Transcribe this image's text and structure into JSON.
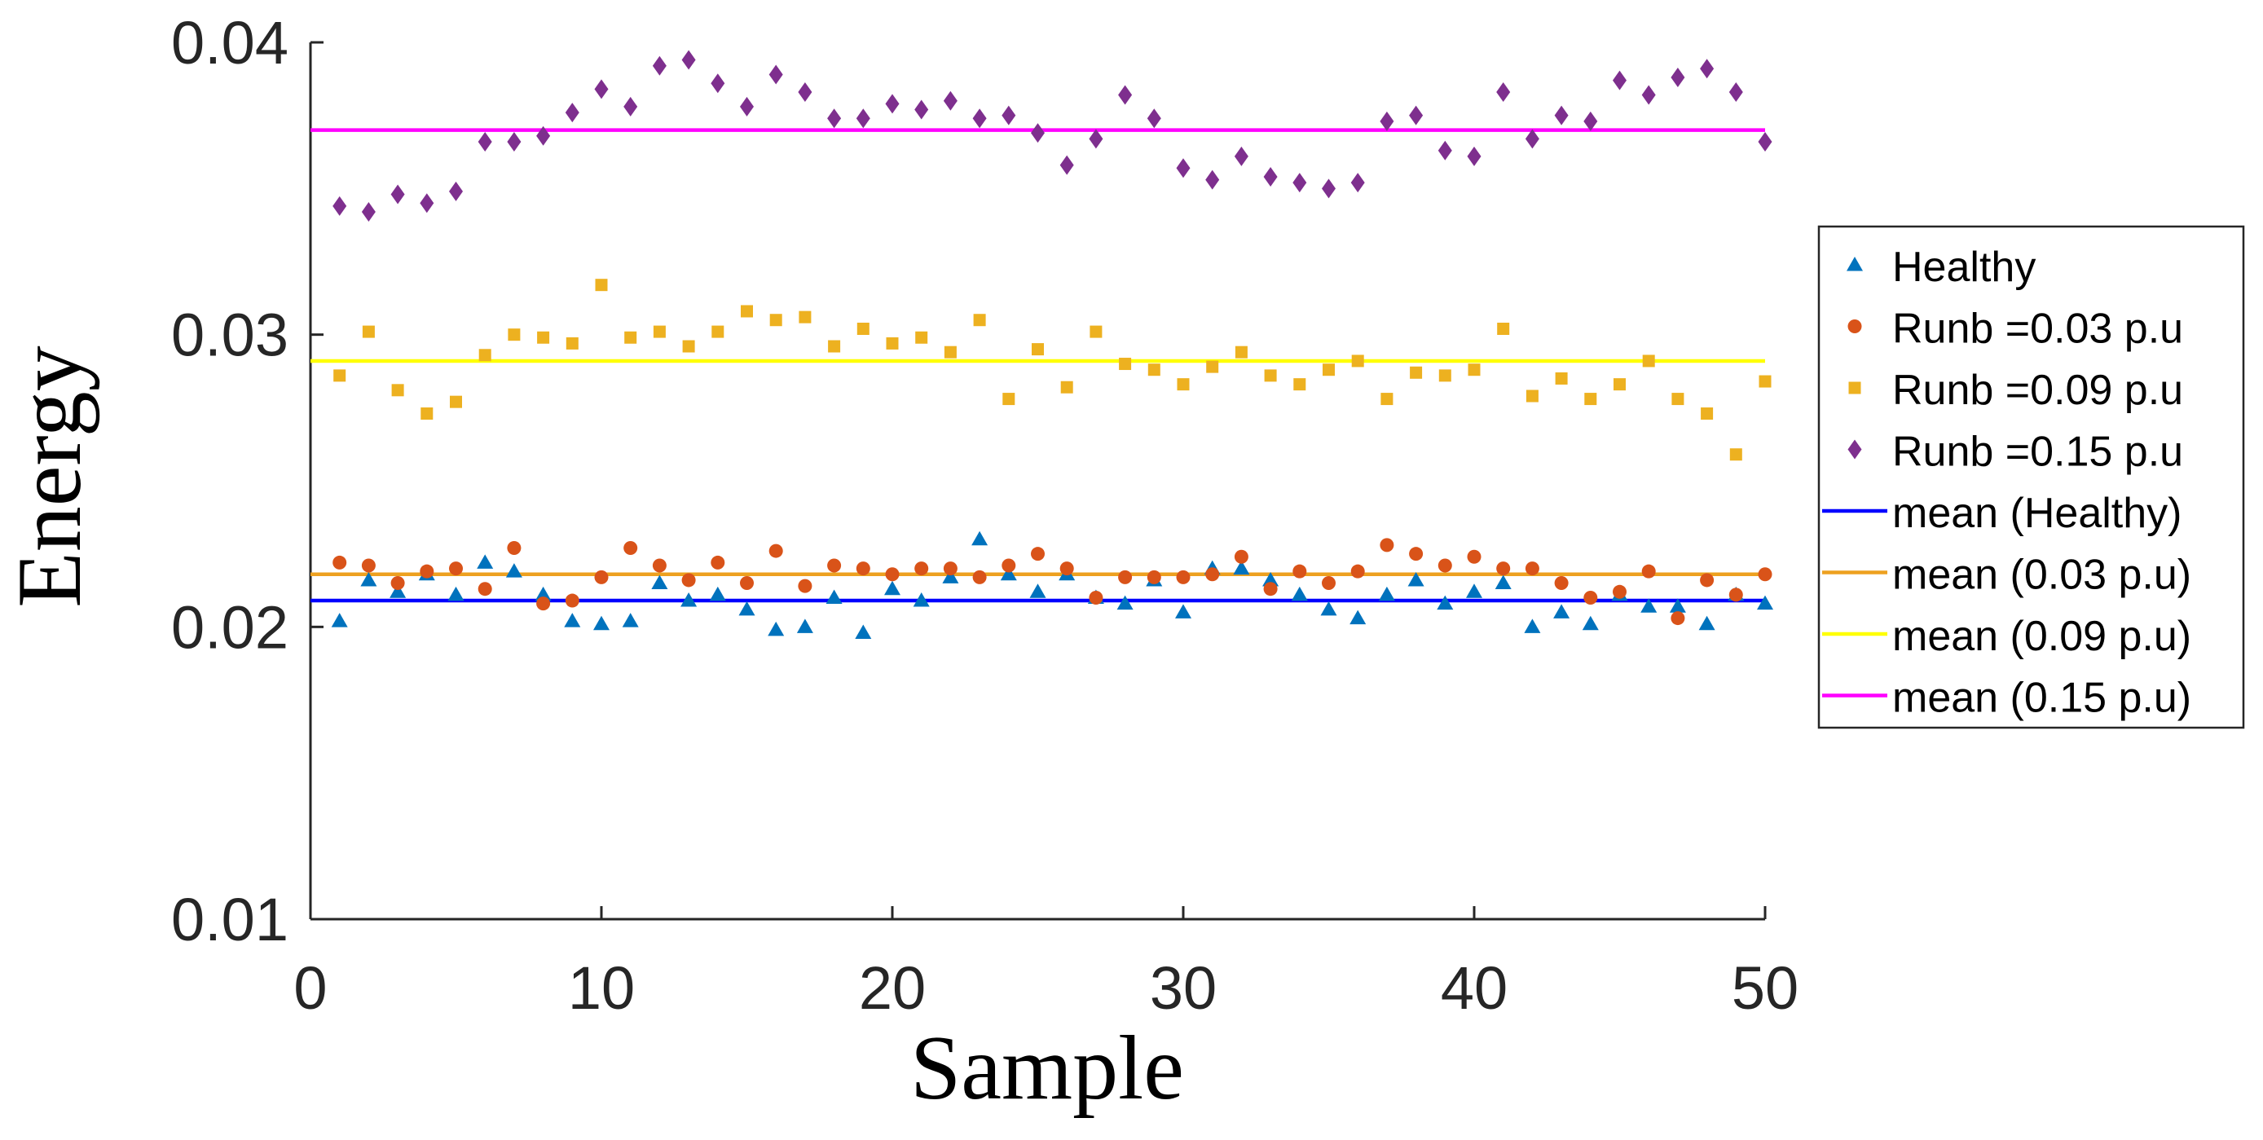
{
  "chart_data": {
    "type": "scatter",
    "title": "",
    "xlabel": "Sample",
    "ylabel": "Energy",
    "xlim": [
      0,
      50
    ],
    "ylim": [
      0.01,
      0.04
    ],
    "xticks": [
      0,
      10,
      20,
      30,
      40,
      50
    ],
    "yticks": [
      0.01,
      0.02,
      0.03,
      0.04
    ],
    "xtick_labels": [
      "0",
      "10",
      "20",
      "30",
      "40",
      "50"
    ],
    "ytick_labels": [
      "0.01",
      "0.02",
      "0.03",
      "0.04"
    ],
    "grid": false,
    "legend_position": "right",
    "x": [
      1,
      2,
      3,
      4,
      5,
      6,
      7,
      8,
      9,
      10,
      11,
      12,
      13,
      14,
      15,
      16,
      17,
      18,
      19,
      20,
      21,
      22,
      23,
      24,
      25,
      26,
      27,
      28,
      29,
      30,
      31,
      32,
      33,
      34,
      35,
      36,
      37,
      38,
      39,
      40,
      41,
      42,
      43,
      44,
      45,
      46,
      47,
      48,
      49,
      50
    ],
    "series": [
      {
        "name": "Healthy",
        "marker": "triangle",
        "color": "#0072BD",
        "values": [
          0.0202,
          0.0216,
          0.0212,
          0.0218,
          0.0211,
          0.0222,
          0.0219,
          0.0211,
          0.0202,
          0.0201,
          0.0202,
          0.0215,
          0.0209,
          0.0211,
          0.0206,
          0.0199,
          0.02,
          0.021,
          0.0198,
          0.0213,
          0.0209,
          0.0217,
          0.023,
          0.0218,
          0.0212,
          0.0218,
          0.021,
          0.0208,
          0.0216,
          0.0205,
          0.022,
          0.022,
          0.0216,
          0.0211,
          0.0206,
          0.0203,
          0.0211,
          0.0216,
          0.0208,
          0.0212,
          0.0215,
          0.02,
          0.0205,
          0.0201,
          0.0211,
          0.0207,
          0.0207,
          0.0201,
          0.0211,
          0.0208
        ]
      },
      {
        "name": "Runb =0.03 p.u",
        "marker": "circle",
        "color": "#D95319",
        "values": [
          0.0222,
          0.0221,
          0.0215,
          0.0219,
          0.022,
          0.0213,
          0.0227,
          0.0208,
          0.0209,
          0.0217,
          0.0227,
          0.0221,
          0.0216,
          0.0222,
          0.0215,
          0.0226,
          0.0214,
          0.0221,
          0.022,
          0.0218,
          0.022,
          0.022,
          0.0217,
          0.0221,
          0.0225,
          0.022,
          0.021,
          0.0217,
          0.0217,
          0.0217,
          0.0218,
          0.0224,
          0.0213,
          0.0219,
          0.0215,
          0.0219,
          0.0228,
          0.0225,
          0.0221,
          0.0224,
          0.022,
          0.022,
          0.0215,
          0.021,
          0.0212,
          0.0219,
          0.0203,
          0.0216,
          0.0211,
          0.0218
        ]
      },
      {
        "name": "Runb =0.09 p.u",
        "marker": "square",
        "color": "#EDB120",
        "values": [
          0.0286,
          0.0301,
          0.0281,
          0.0273,
          0.0277,
          0.0293,
          0.03,
          0.0299,
          0.0297,
          0.0317,
          0.0299,
          0.0301,
          0.0296,
          0.0301,
          0.0308,
          0.0305,
          0.0306,
          0.0296,
          0.0302,
          0.0297,
          0.0299,
          0.0294,
          0.0305,
          0.0278,
          0.0295,
          0.0282,
          0.0301,
          0.029,
          0.0288,
          0.0283,
          0.0289,
          0.0294,
          0.0286,
          0.0283,
          0.0288,
          0.0291,
          0.0278,
          0.0287,
          0.0286,
          0.0288,
          0.0302,
          0.0279,
          0.0285,
          0.0278,
          0.0283,
          0.0291,
          0.0278,
          0.0273,
          0.0259,
          0.0284
        ]
      },
      {
        "name": "Runb =0.15 p.u",
        "marker": "diamond",
        "color": "#7E2F8E",
        "values": [
          0.0344,
          0.0342,
          0.0348,
          0.0345,
          0.0349,
          0.0366,
          0.0366,
          0.0368,
          0.0376,
          0.0384,
          0.0378,
          0.0392,
          0.0394,
          0.0386,
          0.0378,
          0.0389,
          0.0383,
          0.0374,
          0.0374,
          0.0379,
          0.0377,
          0.038,
          0.0374,
          0.0375,
          0.0369,
          0.0358,
          0.0367,
          0.0382,
          0.0374,
          0.0357,
          0.0353,
          0.0361,
          0.0354,
          0.0352,
          0.035,
          0.0352,
          0.0373,
          0.0375,
          0.0363,
          0.0361,
          0.0383,
          0.0367,
          0.0375,
          0.0373,
          0.0387,
          0.0382,
          0.0388,
          0.0391,
          0.0383,
          0.0366
        ]
      }
    ],
    "mean_lines": [
      {
        "name": "mean (Healthy)",
        "color": "#0000FF",
        "value": 0.0209
      },
      {
        "name": "mean (0.03 p.u)",
        "color": "#EDA120",
        "value": 0.0218
      },
      {
        "name": "mean (0.09 p.u)",
        "color": "#FFFF00",
        "value": 0.0291
      },
      {
        "name": "mean (0.15 p.u)",
        "color": "#FF00FF",
        "value": 0.037
      }
    ]
  }
}
